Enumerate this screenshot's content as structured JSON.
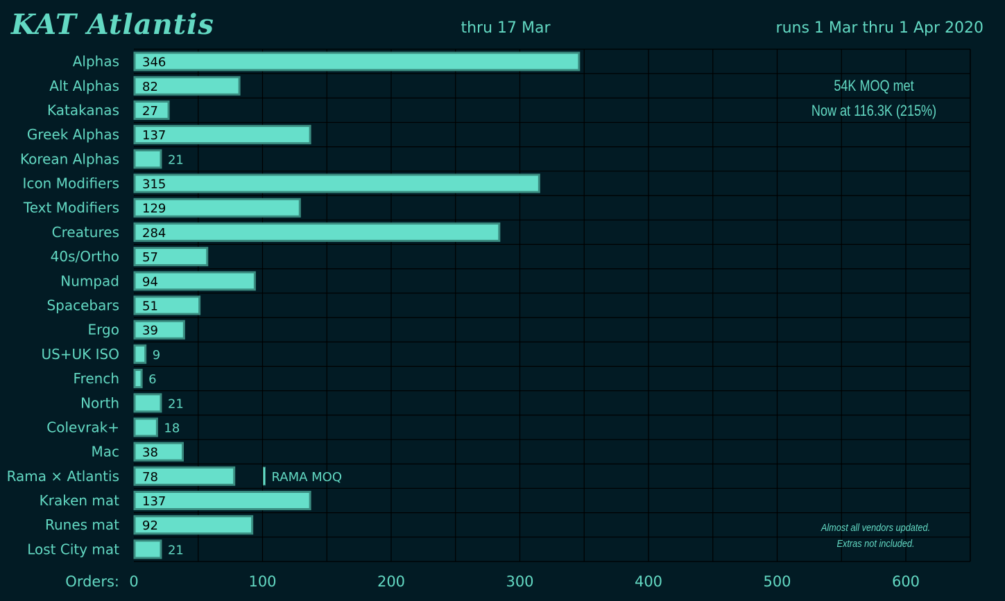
{
  "header": {
    "title": "KAT Atlantis",
    "subtitle": "thru 17 Mar",
    "date_range": "runs 1 Mar thru 1 Apr 2020"
  },
  "notes": {
    "moq_met": "54K MOQ met",
    "now_at": "Now at 116.3K (215%)",
    "footnote_line1": "Almost all vendors updated.",
    "footnote_line2": "Extras not included."
  },
  "colors": {
    "background": "#021b24",
    "grid": "#000000",
    "bar_fill": "#66dfca",
    "bar_edge": "#3a8c80",
    "text": "#63d9c3",
    "value_text": "#000000"
  },
  "chart_data": {
    "type": "bar",
    "orientation": "horizontal",
    "title": "KAT Atlantis",
    "xlabel": "Orders:",
    "ylabel": "",
    "xlim": [
      0,
      650
    ],
    "xticks": [
      0,
      100,
      200,
      300,
      400,
      500,
      600
    ],
    "grid": true,
    "categories": [
      "Alphas",
      "Alt Alphas",
      "Katakanas",
      "Greek Alphas",
      "Korean Alphas",
      "Icon Modifiers",
      "Text Modifiers",
      "Creatures",
      "40s/Ortho",
      "Numpad",
      "Spacebars",
      "Ergo",
      "US+UK ISO",
      "French",
      "North",
      "Colevrak+",
      "Mac",
      "Rama × Atlantis",
      "Kraken mat",
      "Runes mat",
      "Lost City mat"
    ],
    "values": [
      346,
      82,
      27,
      137,
      21,
      315,
      129,
      284,
      57,
      94,
      51,
      39,
      9,
      6,
      21,
      18,
      38,
      78,
      137,
      92,
      21
    ],
    "annotations": [
      {
        "category": "Rama × Atlantis",
        "x": 100,
        "label": "RAMA MOQ"
      }
    ]
  }
}
